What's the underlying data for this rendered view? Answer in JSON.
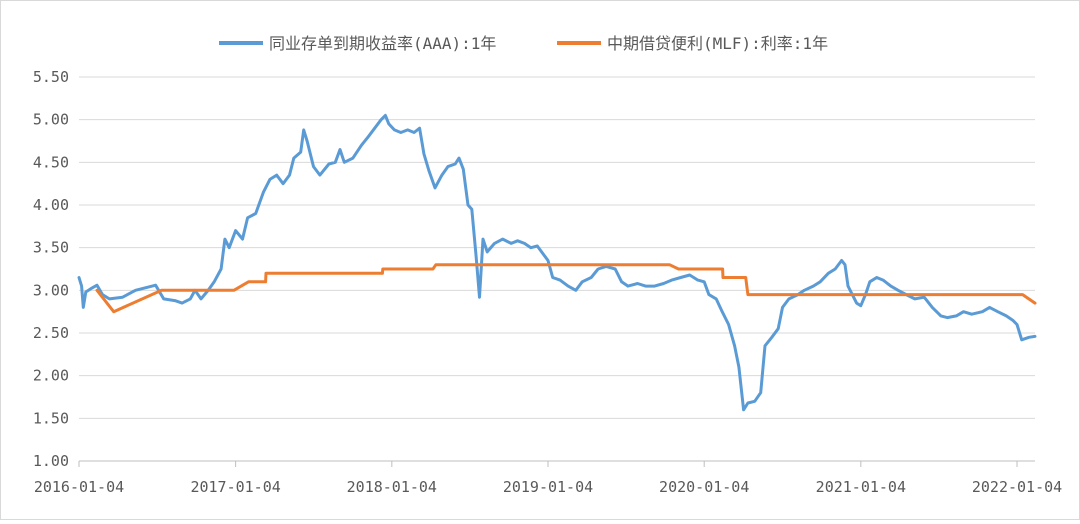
{
  "chart_data": {
    "type": "line",
    "title": "",
    "xlabel": "",
    "ylabel": "",
    "ylim": [
      1.0,
      5.5
    ],
    "yticks": [
      "1.00",
      "1.50",
      "2.00",
      "2.50",
      "3.00",
      "3.50",
      "4.00",
      "4.50",
      "5.00",
      "5.50"
    ],
    "xlim": [
      "2016-01-04",
      "2022-02-15"
    ],
    "xticks": [
      "2016-01-04",
      "2017-01-04",
      "2018-01-04",
      "2019-01-04",
      "2020-01-04",
      "2021-01-04",
      "2022-01-04"
    ],
    "grid": "horizontal",
    "legend": "top-center",
    "series": [
      {
        "name": "同业存单到期收益率(AAA):1年",
        "color": "#5B9BD5",
        "points": [
          [
            "2016-01-04",
            3.15
          ],
          [
            "2016-01-10",
            3.05
          ],
          [
            "2016-01-14",
            2.8
          ],
          [
            "2016-01-20",
            2.98
          ],
          [
            "2016-02-01",
            3.02
          ],
          [
            "2016-02-15",
            3.06
          ],
          [
            "2016-02-28",
            2.95
          ],
          [
            "2016-03-15",
            2.9
          ],
          [
            "2016-04-15",
            2.92
          ],
          [
            "2016-05-15",
            3.0
          ],
          [
            "2016-06-15",
            3.04
          ],
          [
            "2016-07-01",
            3.06
          ],
          [
            "2016-07-20",
            2.9
          ],
          [
            "2016-08-15",
            2.88
          ],
          [
            "2016-09-01",
            2.85
          ],
          [
            "2016-09-20",
            2.9
          ],
          [
            "2016-10-01",
            3.0
          ],
          [
            "2016-10-15",
            2.9
          ],
          [
            "2016-11-01",
            3.0
          ],
          [
            "2016-11-15",
            3.1
          ],
          [
            "2016-12-01",
            3.25
          ],
          [
            "2016-12-10",
            3.6
          ],
          [
            "2016-12-20",
            3.5
          ],
          [
            "2017-01-04",
            3.7
          ],
          [
            "2017-01-20",
            3.6
          ],
          [
            "2017-02-01",
            3.85
          ],
          [
            "2017-02-20",
            3.9
          ],
          [
            "2017-03-10",
            4.15
          ],
          [
            "2017-03-25",
            4.3
          ],
          [
            "2017-04-10",
            4.35
          ],
          [
            "2017-04-25",
            4.25
          ],
          [
            "2017-05-10",
            4.35
          ],
          [
            "2017-05-20",
            4.55
          ],
          [
            "2017-06-05",
            4.62
          ],
          [
            "2017-06-12",
            4.88
          ],
          [
            "2017-06-20",
            4.75
          ],
          [
            "2017-07-05",
            4.45
          ],
          [
            "2017-07-20",
            4.35
          ],
          [
            "2017-08-10",
            4.48
          ],
          [
            "2017-08-25",
            4.5
          ],
          [
            "2017-09-05",
            4.65
          ],
          [
            "2017-09-15",
            4.5
          ],
          [
            "2017-10-05",
            4.55
          ],
          [
            "2017-10-25",
            4.7
          ],
          [
            "2017-11-10",
            4.8
          ],
          [
            "2017-11-25",
            4.9
          ],
          [
            "2017-12-10",
            5.0
          ],
          [
            "2017-12-20",
            5.05
          ],
          [
            "2017-12-28",
            4.95
          ],
          [
            "2018-01-10",
            4.88
          ],
          [
            "2018-01-25",
            4.85
          ],
          [
            "2018-02-10",
            4.88
          ],
          [
            "2018-02-25",
            4.85
          ],
          [
            "2018-03-10",
            4.9
          ],
          [
            "2018-03-20",
            4.6
          ],
          [
            "2018-04-01",
            4.4
          ],
          [
            "2018-04-15",
            4.2
          ],
          [
            "2018-05-01",
            4.35
          ],
          [
            "2018-05-15",
            4.45
          ],
          [
            "2018-06-01",
            4.48
          ],
          [
            "2018-06-10",
            4.55
          ],
          [
            "2018-06-20",
            4.42
          ],
          [
            "2018-07-01",
            4.0
          ],
          [
            "2018-07-10",
            3.95
          ],
          [
            "2018-07-20",
            3.4
          ],
          [
            "2018-07-28",
            2.92
          ],
          [
            "2018-08-05",
            3.6
          ],
          [
            "2018-08-15",
            3.45
          ],
          [
            "2018-09-01",
            3.55
          ],
          [
            "2018-09-20",
            3.6
          ],
          [
            "2018-10-10",
            3.55
          ],
          [
            "2018-10-25",
            3.58
          ],
          [
            "2018-11-10",
            3.55
          ],
          [
            "2018-11-25",
            3.5
          ],
          [
            "2018-12-10",
            3.52
          ],
          [
            "2018-12-20",
            3.45
          ],
          [
            "2019-01-04",
            3.35
          ],
          [
            "2019-01-15",
            3.15
          ],
          [
            "2019-02-01",
            3.12
          ],
          [
            "2019-02-20",
            3.05
          ],
          [
            "2019-03-10",
            3.0
          ],
          [
            "2019-03-25",
            3.1
          ],
          [
            "2019-04-15",
            3.15
          ],
          [
            "2019-05-01",
            3.25
          ],
          [
            "2019-05-20",
            3.28
          ],
          [
            "2019-06-10",
            3.25
          ],
          [
            "2019-06-25",
            3.1
          ],
          [
            "2019-07-10",
            3.05
          ],
          [
            "2019-08-01",
            3.08
          ],
          [
            "2019-08-20",
            3.05
          ],
          [
            "2019-09-10",
            3.05
          ],
          [
            "2019-10-01",
            3.08
          ],
          [
            "2019-10-20",
            3.12
          ],
          [
            "2019-11-10",
            3.15
          ],
          [
            "2019-12-01",
            3.18
          ],
          [
            "2019-12-20",
            3.12
          ],
          [
            "2020-01-04",
            3.1
          ],
          [
            "2020-01-15",
            2.95
          ],
          [
            "2020-02-01",
            2.9
          ],
          [
            "2020-02-15",
            2.75
          ],
          [
            "2020-03-01",
            2.6
          ],
          [
            "2020-03-15",
            2.35
          ],
          [
            "2020-03-25",
            2.1
          ],
          [
            "2020-04-05",
            1.6
          ],
          [
            "2020-04-15",
            1.68
          ],
          [
            "2020-05-01",
            1.7
          ],
          [
            "2020-05-15",
            1.8
          ],
          [
            "2020-05-25",
            2.35
          ],
          [
            "2020-06-10",
            2.45
          ],
          [
            "2020-06-25",
            2.55
          ],
          [
            "2020-07-05",
            2.8
          ],
          [
            "2020-07-20",
            2.9
          ],
          [
            "2020-08-10",
            2.95
          ],
          [
            "2020-08-25",
            3.0
          ],
          [
            "2020-09-15",
            3.05
          ],
          [
            "2020-10-01",
            3.1
          ],
          [
            "2020-10-20",
            3.2
          ],
          [
            "2020-11-05",
            3.25
          ],
          [
            "2020-11-20",
            3.35
          ],
          [
            "2020-11-28",
            3.3
          ],
          [
            "2020-12-05",
            3.05
          ],
          [
            "2020-12-15",
            2.95
          ],
          [
            "2020-12-25",
            2.85
          ],
          [
            "2021-01-04",
            2.82
          ],
          [
            "2021-01-15",
            2.95
          ],
          [
            "2021-01-25",
            3.1
          ],
          [
            "2021-02-10",
            3.15
          ],
          [
            "2021-02-25",
            3.12
          ],
          [
            "2021-03-15",
            3.05
          ],
          [
            "2021-04-01",
            3.0
          ],
          [
            "2021-04-20",
            2.95
          ],
          [
            "2021-05-10",
            2.9
          ],
          [
            "2021-06-01",
            2.92
          ],
          [
            "2021-06-20",
            2.8
          ],
          [
            "2021-07-10",
            2.7
          ],
          [
            "2021-07-25",
            2.68
          ],
          [
            "2021-08-15",
            2.7
          ],
          [
            "2021-09-01",
            2.75
          ],
          [
            "2021-09-20",
            2.72
          ],
          [
            "2021-10-15",
            2.75
          ],
          [
            "2021-11-01",
            2.8
          ],
          [
            "2021-11-20",
            2.75
          ],
          [
            "2021-12-10",
            2.7
          ],
          [
            "2021-12-25",
            2.65
          ],
          [
            "2022-01-04",
            2.6
          ],
          [
            "2022-01-15",
            2.42
          ],
          [
            "2022-02-01",
            2.45
          ],
          [
            "2022-02-15",
            2.46
          ]
        ]
      },
      {
        "name": "中期借贷便利(MLF):利率:1年",
        "color": "#ED7D31",
        "points": [
          [
            "2016-02-15",
            3.0
          ],
          [
            "2016-03-25",
            2.75
          ],
          [
            "2016-07-15",
            3.0
          ],
          [
            "2016-12-31",
            3.0
          ],
          [
            "2017-02-03",
            3.1
          ],
          [
            "2017-03-15",
            3.1
          ],
          [
            "2017-03-16",
            3.2
          ],
          [
            "2017-12-13",
            3.2
          ],
          [
            "2017-12-14",
            3.25
          ],
          [
            "2018-04-10",
            3.25
          ],
          [
            "2018-04-17",
            3.3
          ],
          [
            "2019-10-15",
            3.3
          ],
          [
            "2019-11-05",
            3.25
          ],
          [
            "2020-02-16",
            3.25
          ],
          [
            "2020-02-17",
            3.15
          ],
          [
            "2020-04-10",
            3.15
          ],
          [
            "2020-04-15",
            2.95
          ],
          [
            "2021-12-31",
            2.95
          ],
          [
            "2022-01-17",
            2.95
          ],
          [
            "2022-02-15",
            2.85
          ]
        ]
      }
    ]
  }
}
